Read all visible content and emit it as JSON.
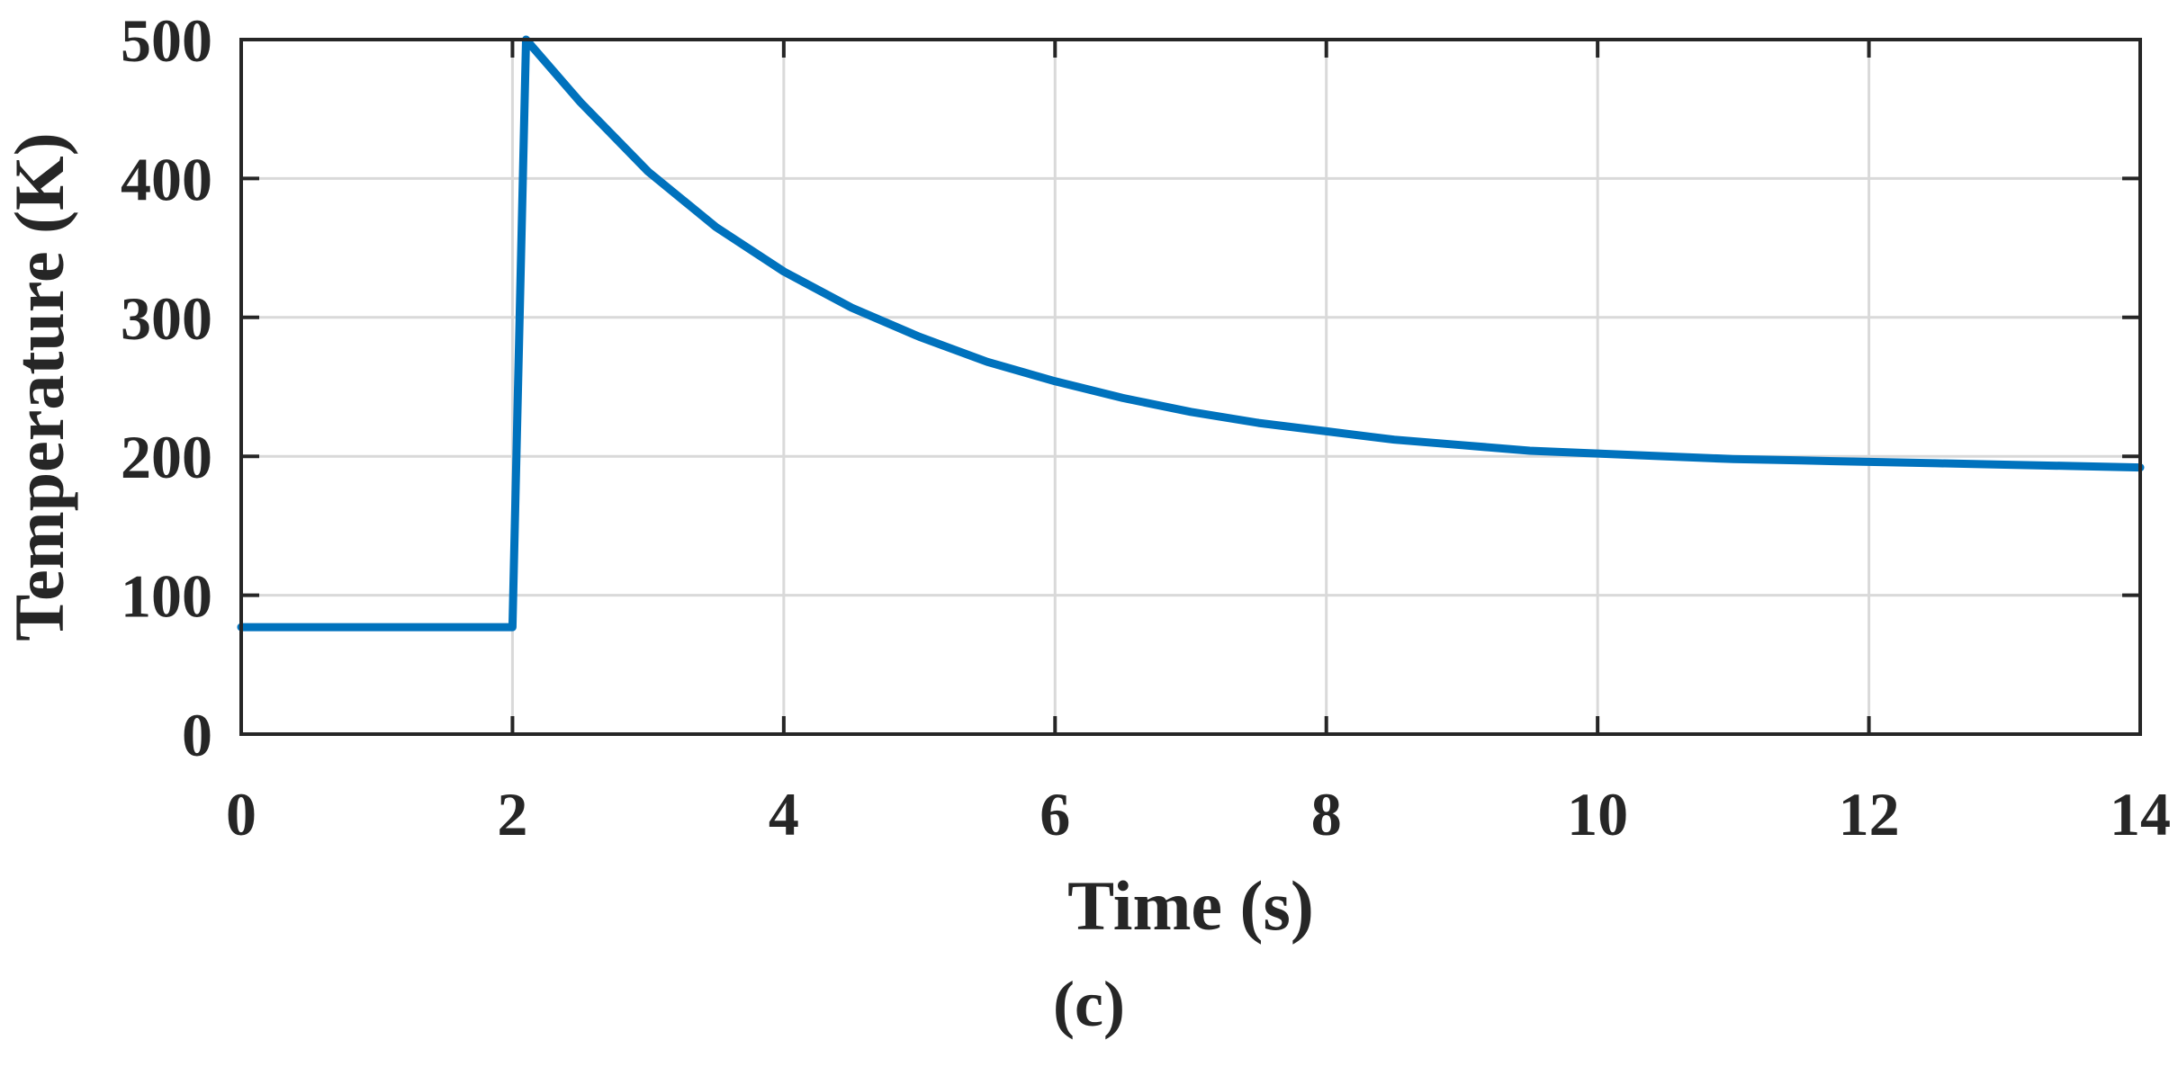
{
  "caption": "(c)",
  "chart_data": {
    "type": "line",
    "title": "",
    "xlabel": "Time (s)",
    "ylabel": "Temperature (K)",
    "xlim": [
      0,
      14
    ],
    "ylim": [
      0,
      500
    ],
    "x_ticks": [
      0,
      2,
      4,
      6,
      8,
      10,
      12,
      14
    ],
    "y_ticks": [
      0,
      100,
      200,
      300,
      400,
      500
    ],
    "x_tick_labels": [
      "0",
      "2",
      "4",
      "6",
      "8",
      "10",
      "12",
      "14"
    ],
    "y_tick_labels": [
      "0",
      "100",
      "200",
      "300",
      "400",
      "500"
    ],
    "grid": true,
    "legend": "none",
    "series": [
      {
        "color": "#0072BD",
        "x": [
          0,
          2.0,
          2.1,
          2.5,
          3.0,
          3.5,
          4.0,
          4.5,
          5.0,
          5.5,
          6.0,
          6.5,
          7.0,
          7.5,
          8.0,
          8.5,
          9.0,
          9.5,
          10.0,
          10.5,
          11.0,
          11.5,
          12.0,
          12.5,
          13.0,
          13.5,
          14.0
        ],
        "y": [
          77,
          77,
          500,
          455,
          405,
          365,
          333,
          307,
          286,
          268,
          254,
          242,
          232,
          224,
          218,
          212,
          208,
          204,
          202,
          200,
          198,
          197,
          196,
          195,
          194,
          193,
          192
        ]
      }
    ]
  }
}
